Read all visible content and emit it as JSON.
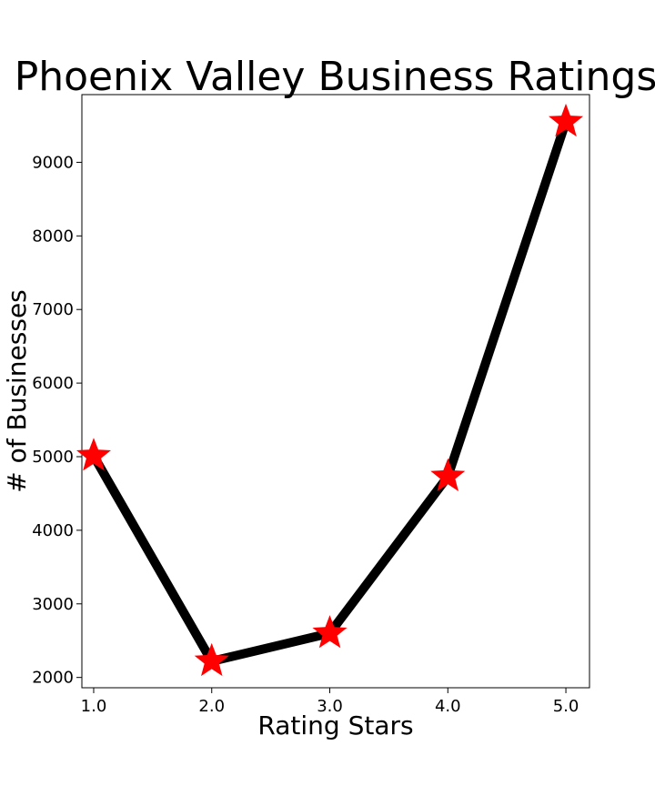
{
  "chart_data": {
    "type": "line",
    "title": "Phoenix Valley Business Ratings",
    "xlabel": "Rating Stars",
    "ylabel": "# of Businesses",
    "x": [
      1.0,
      2.0,
      3.0,
      4.0,
      5.0
    ],
    "values": [
      5010,
      2220,
      2600,
      4730,
      9550
    ],
    "xlim": [
      0.9,
      5.2
    ],
    "ylim": [
      1860,
      9920
    ],
    "x_ticks": [
      "1.0",
      "2.0",
      "3.0",
      "4.0",
      "5.0"
    ],
    "y_ticks": [
      2000,
      3000,
      4000,
      5000,
      6000,
      7000,
      8000,
      9000
    ],
    "grid": false,
    "line_color": "#000000",
    "marker": "star",
    "marker_color": "#ff0000"
  }
}
